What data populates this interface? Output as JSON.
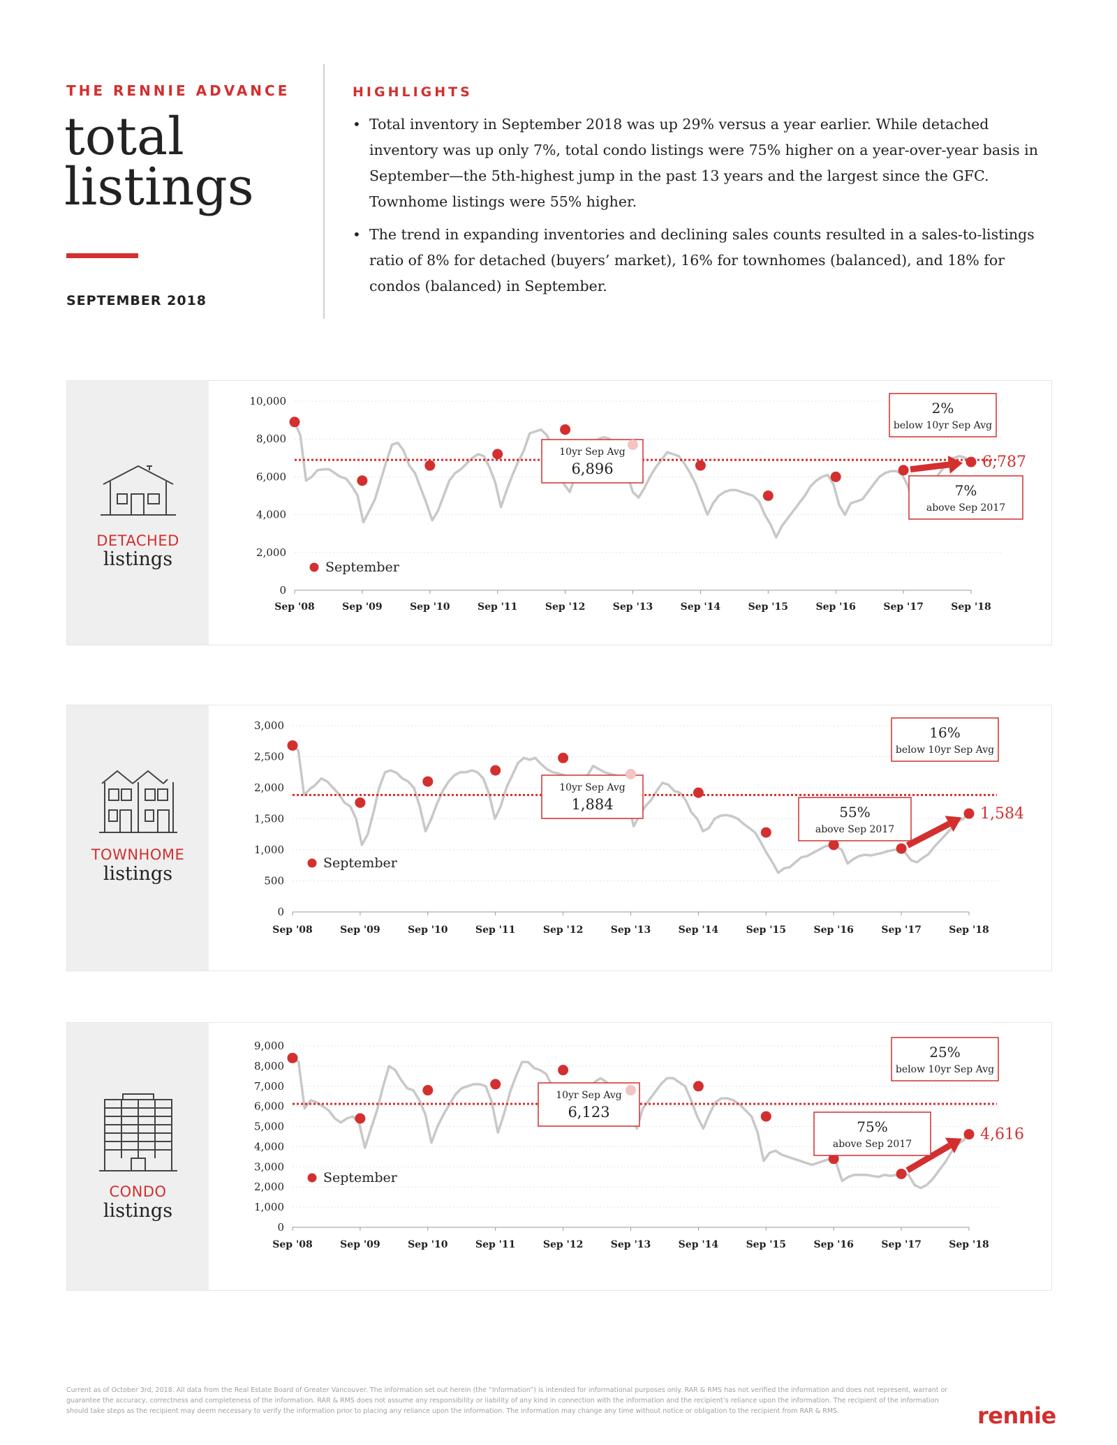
{
  "header": {
    "kicker": "THE RENNIE ADVANCE",
    "title_line1": "total",
    "title_line2": "listings",
    "date": "SEPTEMBER 2018"
  },
  "highlights": {
    "heading": "HIGHLIGHTS",
    "items": [
      "Total inventory in September 2018 was up 29% versus a year earlier. While detached inventory was up only 7%, total condo listings were 75% higher on a year-over-year basis in September—the 5th-highest jump in the past 13 years and the largest since the GFC.  Townhome listings were 55% higher.",
      "The trend in expanding inventories and declining sales counts resulted in a sales-to-listings ratio of 8% for detached (buyers’ market), 16% for townhomes (balanced), and 18% for condos (balanced) in September."
    ]
  },
  "colors": {
    "accent": "#d32f2f",
    "line": "#c8c8c8",
    "panel_side": "#efefef"
  },
  "chart_data": [
    {
      "type": "line",
      "panel_label_red": "DETACHED",
      "panel_label": "listings",
      "icon": "house-icon",
      "x_tick_labels": [
        "Sep '08",
        "Sep '09",
        "Sep '10",
        "Sep '11",
        "Sep '12",
        "Sep '13",
        "Sep '14",
        "Sep '15",
        "Sep '16",
        "Sep '17",
        "Sep '18"
      ],
      "y_ticks": [
        0,
        2000,
        4000,
        6000,
        8000,
        10000
      ],
      "y_tick_labels": [
        "0",
        "2,000",
        "4,000",
        "6,000",
        "8,000",
        "10,000"
      ],
      "ylim": [
        0,
        10000
      ],
      "legend": "September",
      "monthly": [
        8900,
        8200,
        5800,
        6000,
        6350,
        6400,
        6400,
        6200,
        6000,
        5900,
        5500,
        5000,
        3600,
        4200,
        4800,
        5800,
        6800,
        7700,
        7800,
        7400,
        6600,
        6200,
        5400,
        4600,
        3700,
        4200,
        5000,
        5800,
        6200,
        6400,
        6700,
        7000,
        7200,
        7100,
        6500,
        5700,
        4400,
        5300,
        6100,
        6800,
        7400,
        8300,
        8400,
        8500,
        8200,
        7600,
        6900,
        5600,
        5200,
        6100,
        6800,
        7300,
        7800,
        8000,
        8100,
        8000,
        7700,
        7000,
        6100,
        5200,
        4900,
        5400,
        6000,
        6500,
        6900,
        7300,
        7200,
        7100,
        6700,
        6200,
        5600,
        4800,
        4000,
        4600,
        5000,
        5200,
        5300,
        5300,
        5200,
        5100,
        5000,
        4700,
        4000,
        3500,
        2800,
        3400,
        3800,
        4200,
        4600,
        5000,
        5500,
        5800,
        6000,
        6100,
        5600,
        4500,
        4000,
        4600,
        4700,
        4800,
        5200,
        5600,
        6000,
        6200,
        6300,
        6300,
        6100,
        5500,
        4500,
        4700,
        5000,
        5600,
        6000,
        6400,
        6700,
        7000,
        7100,
        7000,
        6787
      ],
      "september_points": [
        8900,
        5800,
        6600,
        7200,
        8500,
        7700,
        6600,
        5000,
        6000,
        6350,
        6787
      ],
      "avg_label": "10yr Sep Avg",
      "avg_value": 6896,
      "avg_text": "6,896",
      "current_text": "6,787",
      "box_top": {
        "pct": "2%",
        "text": "below 10yr Sep Avg"
      },
      "box_bottom": {
        "pct": "7%",
        "text": "above Sep 2017"
      }
    },
    {
      "type": "line",
      "panel_label_red": "TOWNHOME",
      "panel_label": "listings",
      "icon": "townhome-icon",
      "x_tick_labels": [
        "Sep '08",
        "Sep '09",
        "Sep '10",
        "Sep '11",
        "Sep '12",
        "Sep '13",
        "Sep '14",
        "Sep '15",
        "Sep '16",
        "Sep '17",
        "Sep '18"
      ],
      "y_ticks": [
        0,
        500,
        1000,
        1500,
        2000,
        2500,
        3000
      ],
      "y_tick_labels": [
        "0",
        "500",
        "1,000",
        "1,500",
        "2,000",
        "2,500",
        "3,000"
      ],
      "ylim": [
        0,
        3000
      ],
      "legend": "September",
      "monthly": [
        2680,
        2600,
        1880,
        1980,
        2050,
        2150,
        2100,
        2000,
        1900,
        1760,
        1700,
        1500,
        1080,
        1250,
        1600,
        2000,
        2250,
        2280,
        2240,
        2150,
        2100,
        2000,
        1700,
        1300,
        1500,
        1750,
        1950,
        2100,
        2200,
        2250,
        2250,
        2280,
        2250,
        2150,
        1900,
        1500,
        1700,
        2000,
        2200,
        2400,
        2480,
        2450,
        2480,
        2380,
        2300,
        2250,
        2230,
        2200,
        1900,
        1700,
        2000,
        2200,
        2350,
        2300,
        2250,
        2220,
        2200,
        2100,
        1800,
        1380,
        1550,
        1700,
        1800,
        1950,
        2080,
        2050,
        1950,
        1920,
        1800,
        1600,
        1500,
        1300,
        1350,
        1500,
        1550,
        1560,
        1540,
        1500,
        1420,
        1350,
        1280,
        1120,
        950,
        800,
        630,
        700,
        720,
        800,
        880,
        900,
        950,
        1000,
        1050,
        1080,
        1060,
        1000,
        780,
        850,
        900,
        920,
        910,
        930,
        950,
        980,
        1000,
        1000,
        950,
        830,
        800,
        870,
        930,
        1050,
        1150,
        1250,
        1350,
        1450,
        1500,
        1584
      ],
      "september_points": [
        2680,
        1760,
        2100,
        2280,
        2480,
        2220,
        1920,
        1280,
        1080,
        1020,
        1584
      ],
      "avg_label": "10yr Sep Avg",
      "avg_value": 1884,
      "avg_text": "1,884",
      "current_text": "1,584",
      "box_top": {
        "pct": "16%",
        "text": "below 10yr Sep Avg"
      },
      "box_bottom": {
        "pct": "55%",
        "text": "above Sep 2017"
      }
    },
    {
      "type": "line",
      "panel_label_red": "CONDO",
      "panel_label": "listings",
      "icon": "condo-building-icon",
      "x_tick_labels": [
        "Sep '08",
        "Sep '09",
        "Sep '10",
        "Sep '11",
        "Sep '12",
        "Sep '13",
        "Sep '14",
        "Sep '15",
        "Sep '16",
        "Sep '17",
        "Sep '18"
      ],
      "y_ticks": [
        0,
        1000,
        2000,
        3000,
        4000,
        5000,
        6000,
        7000,
        8000,
        9000
      ],
      "y_tick_labels": [
        "0",
        "1,000",
        "2,000",
        "3,000",
        "4,000",
        "5,000",
        "6,000",
        "7,000",
        "8,000",
        "9,000"
      ],
      "ylim": [
        0,
        9000
      ],
      "legend": "September",
      "monthly": [
        8400,
        8200,
        5900,
        6300,
        6200,
        6000,
        5800,
        5400,
        5200,
        5400,
        5500,
        5200,
        3950,
        4900,
        5800,
        7000,
        8000,
        7800,
        7300,
        6900,
        6800,
        6300,
        5600,
        4200,
        5000,
        5600,
        6100,
        6600,
        6900,
        7000,
        7100,
        7100,
        7000,
        6200,
        4700,
        5600,
        6700,
        7500,
        8200,
        8200,
        7900,
        7800,
        7600,
        7000,
        6300,
        5700,
        5200,
        5700,
        6400,
        6900,
        7200,
        7400,
        7200,
        6900,
        6600,
        6300,
        5500,
        4900,
        5900,
        6300,
        6700,
        7100,
        7400,
        7400,
        7200,
        7000,
        6300,
        5500,
        4900,
        5600,
        6200,
        6400,
        6400,
        6300,
        6100,
        5800,
        5500,
        4700,
        3300,
        3700,
        3800,
        3600,
        3500,
        3400,
        3300,
        3200,
        3100,
        3200,
        3300,
        3400,
        3200,
        2300,
        2500,
        2600,
        2600,
        2600,
        2550,
        2500,
        2600,
        2550,
        2600,
        2650,
        2600,
        2100,
        1950,
        2100,
        2400,
        2800,
        3200,
        3700,
        4100,
        4300,
        4616
      ],
      "september_points": [
        8400,
        5400,
        6800,
        7100,
        7800,
        6800,
        7000,
        5500,
        3400,
        2650,
        4616
      ],
      "avg_label": "10yr Sep Avg",
      "avg_value": 6123,
      "avg_text": "6,123",
      "current_text": "4,616",
      "box_top": {
        "pct": "25%",
        "text": "below 10yr Sep Avg"
      },
      "box_bottom": {
        "pct": "75%",
        "text": "above Sep 2017"
      }
    }
  ],
  "footer": {
    "disclaimer": "Current as of October 3rd, 2018. All data from the Real Estate Board of Greater Vancouver. The information set out herein (the “Information”) is intended for informational purposes only. RAR & RMS has not verified the information and does not represent, warrant or guarantee the accuracy, correctness and completeness of the information. RAR & RMS does not assume any responsibility or liability of any kind in connection with the information and the recipient’s reliance upon the information. The recipient of the information should take steps as the recipient may deem necessary to verify the information prior to placing any reliance upon the information. The information may change any time without notice or obligation to the recipient from RAR & RMS.",
    "logo": "rennie"
  }
}
